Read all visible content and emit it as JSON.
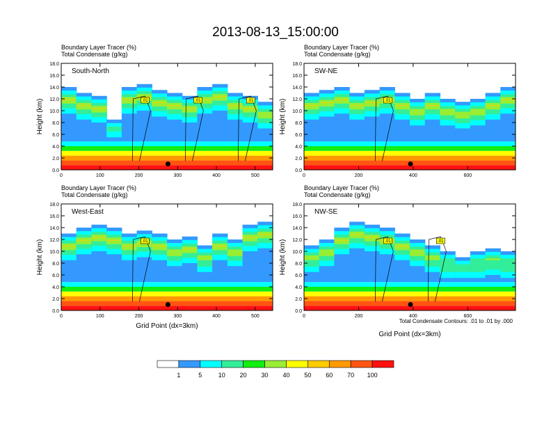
{
  "figure": {
    "title": "2013-08-13_15:00:00",
    "footnote": "Total Condensate Contours: .01 to .01 by .000"
  },
  "colorbar": {
    "labels": [
      "1",
      "5",
      "10",
      "20",
      "30",
      "40",
      "50",
      "60",
      "70",
      "100"
    ],
    "colors": [
      "#ffffff",
      "#3399ff",
      "#00ffff",
      "#33ee99",
      "#11ee11",
      "#99ee33",
      "#ffff00",
      "#ffcc00",
      "#ff9900",
      "#ff5511",
      "#ff1111"
    ]
  },
  "chart_data": [
    {
      "type": "heatmap",
      "panel_label": "South-North",
      "header_line1": "Boundary Layer Tracer   (%)",
      "header_line2": "Total Condensate   (g/kg)",
      "xlabel": "",
      "ylabel": "Height (km)",
      "xlim": [
        0,
        545
      ],
      "ylim": [
        0,
        18
      ],
      "x_ticks": [
        "0",
        "100",
        "200",
        "300",
        "400",
        "500"
      ],
      "y_ticks": [
        "0.0",
        "2.0",
        "4.0",
        "6.0",
        "8.0",
        "10.0",
        "12.0",
        "14.0",
        "16.0",
        "18.0"
      ],
      "marker_x": 275,
      "contour_labels": [
        ".01",
        ".01",
        ".01"
      ],
      "cloud_tops_km": [
        14,
        13,
        12.5,
        8.5,
        14,
        14.5,
        13.5,
        13,
        12.5,
        14,
        14.5,
        13,
        12.5,
        11.5
      ]
    },
    {
      "type": "heatmap",
      "panel_label": "SW-NE",
      "header_line1": "Boundary Layer Tracer   (%)",
      "header_line2": "Total Condensate   (g/kg)",
      "xlabel": "",
      "ylabel": "Height (km)",
      "xlim": [
        0,
        775
      ],
      "ylim": [
        0,
        18
      ],
      "x_ticks": [
        "0",
        "200",
        "400",
        "600"
      ],
      "y_ticks": [
        "0.0",
        "2.0",
        "4.0",
        "6.0",
        "8.0",
        "10.0",
        "12.0",
        "14.0",
        "16.0",
        "18.0"
      ],
      "marker_x": 390,
      "contour_labels": [
        ".01"
      ],
      "cloud_tops_km": [
        13,
        13.5,
        14,
        13,
        13.5,
        14,
        13,
        12,
        13,
        12,
        11.5,
        12,
        13,
        14
      ]
    },
    {
      "type": "heatmap",
      "panel_label": "West-East",
      "header_line1": "Boundary Layer Tracer   (%)",
      "header_line2": "Total Condensate   (g/kg)",
      "xlabel": "Grid Point (dx=3km)",
      "ylabel": "Height (km)",
      "xlim": [
        0,
        545
      ],
      "ylim": [
        0,
        18
      ],
      "x_ticks": [
        "0",
        "100",
        "200",
        "300",
        "400",
        "500"
      ],
      "y_ticks": [
        "0.0",
        "2.0",
        "4.0",
        "6.0",
        "8.0",
        "10.0",
        "12.0",
        "14.0",
        "16.0",
        "18.0"
      ],
      "marker_x": 275,
      "contour_labels": [
        ".01"
      ],
      "cloud_tops_km": [
        13,
        14,
        14.5,
        14,
        13,
        13.5,
        13,
        12,
        12.5,
        11,
        13,
        12,
        14.5,
        15
      ]
    },
    {
      "type": "heatmap",
      "panel_label": "NW-SE",
      "header_line1": "Boundary Layer Tracer   (%)",
      "header_line2": "Total Condensate   (g/kg)",
      "xlabel": "Grid Point (dx=3km)",
      "ylabel": "Height (km)",
      "xlim": [
        0,
        775
      ],
      "ylim": [
        0,
        18
      ],
      "x_ticks": [
        "0",
        "200",
        "400",
        "600"
      ],
      "y_ticks": [
        "0.0",
        "2.0",
        "4.0",
        "6.0",
        "8.0",
        "10.0",
        "12.0",
        "14.0",
        "16.0",
        "18.0"
      ],
      "marker_x": 390,
      "contour_labels": [
        ".01",
        ".01"
      ],
      "cloud_tops_km": [
        11,
        12,
        14,
        15,
        14.5,
        14,
        13,
        12,
        11,
        10,
        9,
        10,
        10.5,
        10
      ]
    }
  ]
}
